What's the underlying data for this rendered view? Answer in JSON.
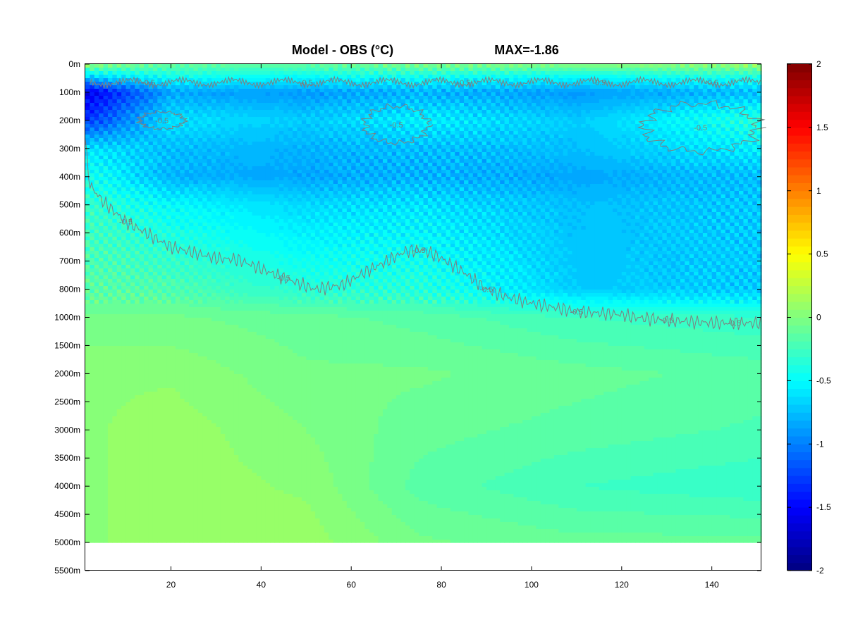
{
  "chart_data": {
    "type": "heatmap",
    "title": "Model - OBS (°C)",
    "annotation": "MAX=-1.86",
    "xlim": [
      1,
      151
    ],
    "x_ticks": [
      20,
      40,
      60,
      80,
      100,
      120,
      140
    ],
    "y_scale": "piecewise: 100m steps to 1000m, 500m steps to 5500m",
    "y_ticks": [
      "0m",
      "100m",
      "200m",
      "300m",
      "400m",
      "500m",
      "600m",
      "700m",
      "800m",
      "1000m",
      "1500m",
      "2000m",
      "2500m",
      "3000m",
      "3500m",
      "4000m",
      "4500m",
      "5000m",
      "5500m"
    ],
    "y_tick_depths": [
      0,
      100,
      200,
      300,
      400,
      500,
      600,
      700,
      800,
      1000,
      1500,
      2000,
      2500,
      3000,
      3500,
      4000,
      4500,
      5000,
      5500
    ],
    "data_bottom_depth": 5000,
    "colorbar": {
      "colormap": "jet",
      "range": [
        -2,
        2
      ],
      "tick_values": [
        2,
        1.5,
        1,
        0.5,
        0,
        -0.5,
        -1,
        -1.5,
        -2
      ],
      "tick_labels": [
        "2",
        "1.5",
        "1",
        "0.5",
        "0",
        "-0.5",
        "-1",
        "-1.5",
        "-2"
      ]
    },
    "contour_level": -0.5,
    "contour_label": "-0.5",
    "contour_color": "#7f7f7f",
    "upper_contour_depth": 65,
    "lower_contour": {
      "x": [
        1,
        2,
        5,
        10,
        20,
        30,
        35,
        45,
        52,
        58,
        63,
        68,
        72,
        76,
        80,
        85,
        90,
        95,
        100,
        110,
        120,
        130,
        140,
        151
      ],
      "depth": [
        280,
        430,
        490,
        560,
        650,
        690,
        695,
        760,
        800,
        785,
        740,
        700,
        665,
        660,
        690,
        740,
        800,
        860,
        900,
        960,
        980,
        1050,
        1100,
        1100
      ]
    },
    "field_profiles": [
      {
        "x": 1,
        "depth": [
          0,
          40,
          100,
          200,
          300,
          400,
          500,
          800,
          1000,
          2000,
          3000,
          4000,
          5000
        ],
        "values": [
          0.1,
          -0.6,
          -1.6,
          -1.3,
          -0.6,
          -0.4,
          -0.3,
          -0.15,
          -0.05,
          0.05,
          0.05,
          0.05,
          0.05
        ]
      },
      {
        "x": 20,
        "depth": [
          0,
          40,
          100,
          200,
          300,
          400,
          500,
          800,
          1000,
          2000,
          3000,
          4000,
          5000
        ],
        "values": [
          -0.1,
          -0.4,
          -0.85,
          -0.6,
          -0.75,
          -0.8,
          -0.5,
          -0.2,
          -0.05,
          0.05,
          0.1,
          0.1,
          0.1
        ]
      },
      {
        "x": 50,
        "depth": [
          0,
          40,
          100,
          200,
          300,
          400,
          500,
          800,
          1000,
          2000,
          3000,
          4000,
          5000
        ],
        "values": [
          -0.1,
          -0.45,
          -0.9,
          -0.7,
          -0.8,
          -0.85,
          -0.65,
          -0.35,
          -0.1,
          -0.05,
          0.0,
          0.05,
          0.1
        ]
      },
      {
        "x": 75,
        "depth": [
          0,
          40,
          100,
          200,
          300,
          400,
          500,
          800,
          1000,
          2000,
          3000,
          4000,
          5000
        ],
        "values": [
          0.0,
          -0.4,
          -0.8,
          -0.55,
          -0.75,
          -0.8,
          -0.6,
          -0.35,
          -0.15,
          -0.05,
          -0.1,
          -0.15,
          -0.05
        ]
      },
      {
        "x": 110,
        "depth": [
          0,
          40,
          100,
          200,
          300,
          400,
          500,
          800,
          1000,
          2000,
          3000,
          4000,
          5000
        ],
        "values": [
          0.05,
          -0.45,
          -0.9,
          -0.7,
          -0.75,
          -0.85,
          -0.75,
          -0.7,
          -0.25,
          -0.1,
          -0.15,
          -0.25,
          -0.1
        ]
      },
      {
        "x": 151,
        "depth": [
          0,
          40,
          100,
          200,
          300,
          400,
          500,
          800,
          1000,
          2000,
          3000,
          4000,
          5000
        ],
        "values": [
          0.1,
          -0.35,
          -0.75,
          -0.35,
          -0.55,
          -0.75,
          -0.7,
          -0.7,
          -0.3,
          -0.15,
          -0.2,
          -0.3,
          -0.1
        ]
      }
    ],
    "embedded_minus05_patches": [
      {
        "x_range": [
          13,
          23
        ],
        "depth_range": [
          170,
          230
        ]
      },
      {
        "x_range": [
          63,
          77
        ],
        "depth_range": [
          150,
          280
        ]
      },
      {
        "x_range": [
          125,
          150
        ],
        "depth_range": [
          140,
          310
        ]
      }
    ]
  }
}
